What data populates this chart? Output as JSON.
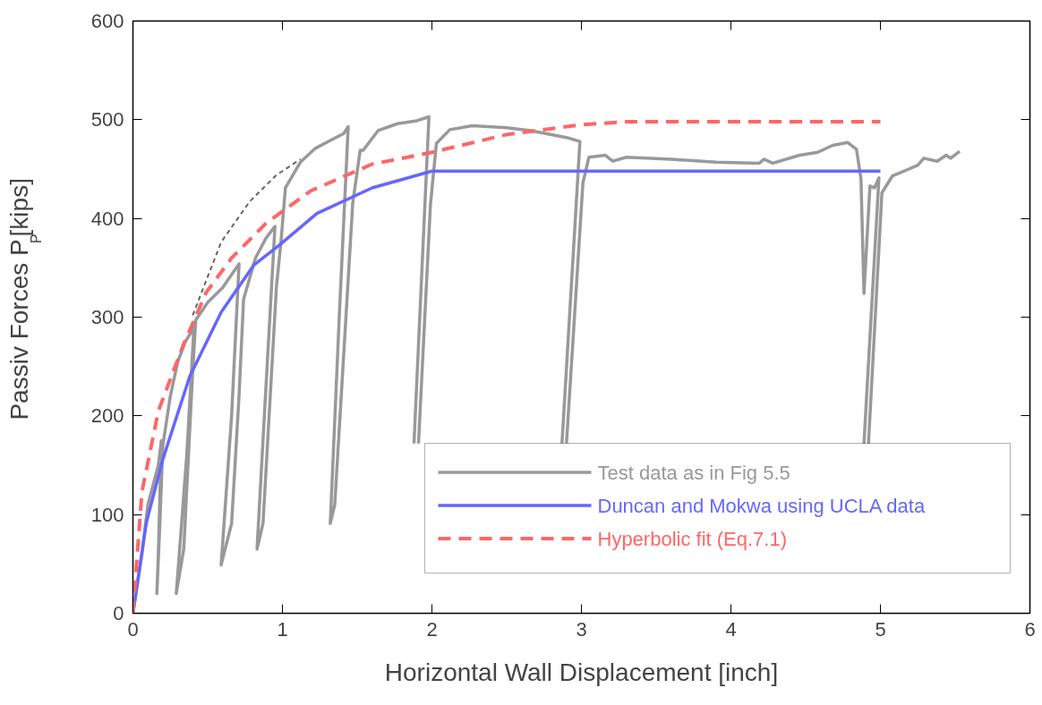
{
  "chart_data": {
    "type": "line",
    "xlabel": "Horizontal Wall Displacement [inch]",
    "ylabel": "Passiv Forces P$_{P}$ [kips]",
    "xlim": [
      0,
      6
    ],
    "ylim": [
      0,
      600
    ],
    "xticks": [
      0,
      1,
      2,
      3,
      4,
      5,
      6
    ],
    "yticks": [
      0,
      100,
      200,
      300,
      400,
      500,
      600
    ],
    "grid": false,
    "legend": "bottom right",
    "series": [
      {
        "name": "Test data as in Fig 5.5",
        "color": "#999999",
        "line_style": "solid",
        "x": [
          0,
          0.06,
          0.1,
          0.17,
          0.19,
          0.17,
          0.16,
          0.18,
          0.2,
          0.25,
          0.3,
          0.35,
          0.39,
          0.41,
          0.36,
          0.29,
          0.34,
          0.4,
          0.42,
          0.5,
          0.6,
          0.71,
          0.66,
          0.59,
          0.66,
          0.71,
          0.74,
          0.82,
          0.89,
          0.95,
          0.89,
          0.83,
          0.87,
          0.96,
          0.99,
          1.02,
          1.12,
          1.22,
          1.32,
          1.41,
          1.44,
          1.38,
          1.32,
          1.35,
          1.47,
          1.52,
          1.54,
          1.64,
          1.77,
          1.9,
          1.98,
          1.88,
          null,
          1.91,
          1.99,
          2.03,
          2.12,
          2.27,
          2.5,
          2.66,
          2.9,
          2.99,
          2.87,
          null,
          2.9,
          3.01,
          3.05,
          3.16,
          3.21,
          3.3,
          3.6,
          3.9,
          4.19,
          4.22,
          4.28,
          4.46,
          4.58,
          4.68,
          4.78,
          4.84,
          4.87,
          4.89,
          4.93,
          4.96,
          4.99,
          4.89,
          null,
          4.92,
          5.01,
          5.08,
          5.19,
          5.25,
          5.29,
          5.38,
          5.44,
          5.47,
          5.53
        ],
        "values": [
          0,
          60,
          110,
          150,
          175,
          60,
          20,
          90,
          170,
          220,
          255,
          275,
          285,
          295,
          160,
          20,
          65,
          246,
          297,
          315,
          330,
          354,
          200,
          49,
          91,
          221,
          318,
          360,
          380,
          392,
          230,
          65,
          91,
          331,
          376,
          431,
          457,
          471,
          479,
          486,
          493,
          300,
          91,
          110,
          415,
          469,
          469,
          489,
          496,
          499,
          503,
          172,
          null,
          172,
          414,
          476,
          490,
          494,
          492,
          489,
          482,
          478,
          172,
          null,
          172,
          436,
          462,
          464,
          458,
          462,
          460,
          457,
          456,
          460,
          456,
          464,
          467,
          474,
          477,
          470,
          440,
          324,
          433,
          431,
          441,
          172,
          null,
          172,
          426,
          443,
          450,
          454,
          461,
          458,
          464,
          461,
          468
        ]
      },
      {
        "name": "Duncan and Mokwa using UCLA data",
        "color": "#6666ff",
        "line_style": "solid",
        "x": [
          0,
          0.09,
          0.2,
          0.38,
          0.59,
          0.81,
          0.98,
          1.23,
          1.6,
          2.0,
          5.0
        ],
        "values": [
          0,
          92,
          156,
          240,
          305,
          353,
          373,
          405,
          431,
          448,
          448
        ]
      },
      {
        "name": "Hyperbolic fit (Eq.7.1)",
        "color": "#ff6666",
        "line_style": "dashed",
        "x": [
          0,
          0.06,
          0.17,
          0.34,
          0.49,
          0.66,
          0.89,
          1.19,
          1.6,
          2.0,
          2.5,
          3.0,
          3.3,
          5.0
        ],
        "values": [
          0,
          123,
          205,
          273,
          325,
          360,
          395,
          428,
          455,
          467,
          485,
          495,
          498,
          498
        ]
      },
      {
        "color": "#666666",
        "line_style": "dotted",
        "x": [
          0.4,
          0.59,
          0.78,
          0.96,
          1.12
        ],
        "values": [
          302,
          376,
          417,
          444,
          460
        ]
      }
    ]
  }
}
